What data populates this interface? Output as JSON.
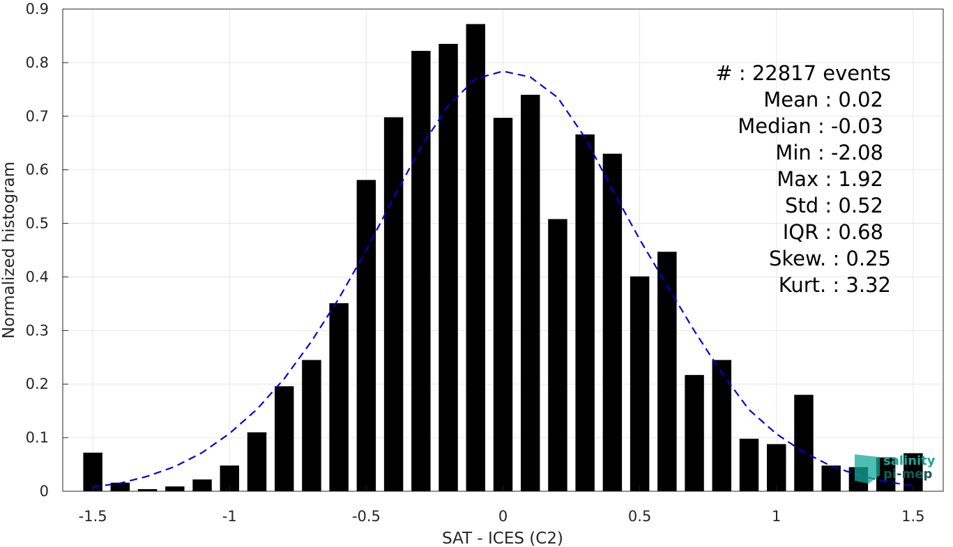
{
  "chart_data": {
    "type": "bar",
    "xlabel": "SAT - ICES (C2)",
    "ylabel": "Normalized histogram",
    "xlim": [
      -1.61,
      1.61
    ],
    "ylim": [
      0,
      0.9
    ],
    "xticks": [
      -1.5,
      -1,
      -0.5,
      0,
      0.5,
      1,
      1.5
    ],
    "xtick_labels": [
      "-1.5",
      "-1",
      "-0.5",
      "0",
      "0.5",
      "1",
      "1.5"
    ],
    "yticks": [
      0,
      0.1,
      0.2,
      0.3,
      0.4,
      0.5,
      0.6,
      0.7,
      0.8,
      0.9
    ],
    "ytick_labels": [
      "0",
      "0.1",
      "0.2",
      "0.3",
      "0.4",
      "0.5",
      "0.6",
      "0.7",
      "0.8",
      "0.9"
    ],
    "grid": true,
    "bar_color": "#000000",
    "bar_width": 0.07,
    "x": [
      -1.5,
      -1.4,
      -1.3,
      -1.2,
      -1.1,
      -1.0,
      -0.9,
      -0.8,
      -0.7,
      -0.6,
      -0.5,
      -0.4,
      -0.3,
      -0.2,
      -0.1,
      0.0,
      0.1,
      0.2,
      0.3,
      0.4,
      0.5,
      0.6,
      0.7,
      0.8,
      0.9,
      1.0,
      1.1,
      1.2,
      1.3,
      1.4,
      1.5
    ],
    "values": [
      0.072,
      0.016,
      0.004,
      0.009,
      0.022,
      0.048,
      0.11,
      0.196,
      0.245,
      0.351,
      0.581,
      0.698,
      0.822,
      0.835,
      0.872,
      0.697,
      0.74,
      0.508,
      0.666,
      0.63,
      0.401,
      0.447,
      0.217,
      0.245,
      0.098,
      0.088,
      0.18,
      0.048,
      0.045,
      0.063,
      0.071
    ],
    "fit_curve": {
      "style": "dashed",
      "color": "#0000dd",
      "x": [
        -1.5,
        -1.4,
        -1.3,
        -1.2,
        -1.1,
        -1.0,
        -0.9,
        -0.8,
        -0.7,
        -0.6,
        -0.5,
        -0.4,
        -0.3,
        -0.2,
        -0.1,
        0.0,
        0.1,
        0.2,
        0.3,
        0.4,
        0.5,
        0.6,
        0.7,
        0.8,
        0.9,
        1.0,
        1.1,
        1.2,
        1.3,
        1.4,
        1.5
      ],
      "y": [
        0.008,
        0.015,
        0.028,
        0.046,
        0.072,
        0.108,
        0.153,
        0.21,
        0.28,
        0.36,
        0.45,
        0.548,
        0.642,
        0.72,
        0.77,
        0.784,
        0.773,
        0.735,
        0.66,
        0.563,
        0.47,
        0.384,
        0.299,
        0.221,
        0.152,
        0.107,
        0.073,
        0.047,
        0.03,
        0.018,
        0.01
      ]
    }
  },
  "stats": [
    {
      "label": "#  : 22817 events"
    },
    {
      "label": "Mean : 0.02"
    },
    {
      "label": "Median : -0.03"
    },
    {
      "label": "Min : -2.08"
    },
    {
      "label": "Max : 1.92"
    },
    {
      "label": "Std : 0.52"
    },
    {
      "label": "IQR : 0.68"
    },
    {
      "label": "Skew. : 0.25"
    },
    {
      "label": "Kurt. : 3.32"
    }
  ],
  "logo": {
    "line1": "salinity",
    "line2": "pi-mep",
    "color1": "#14a898",
    "color2": "#0e5e55"
  }
}
